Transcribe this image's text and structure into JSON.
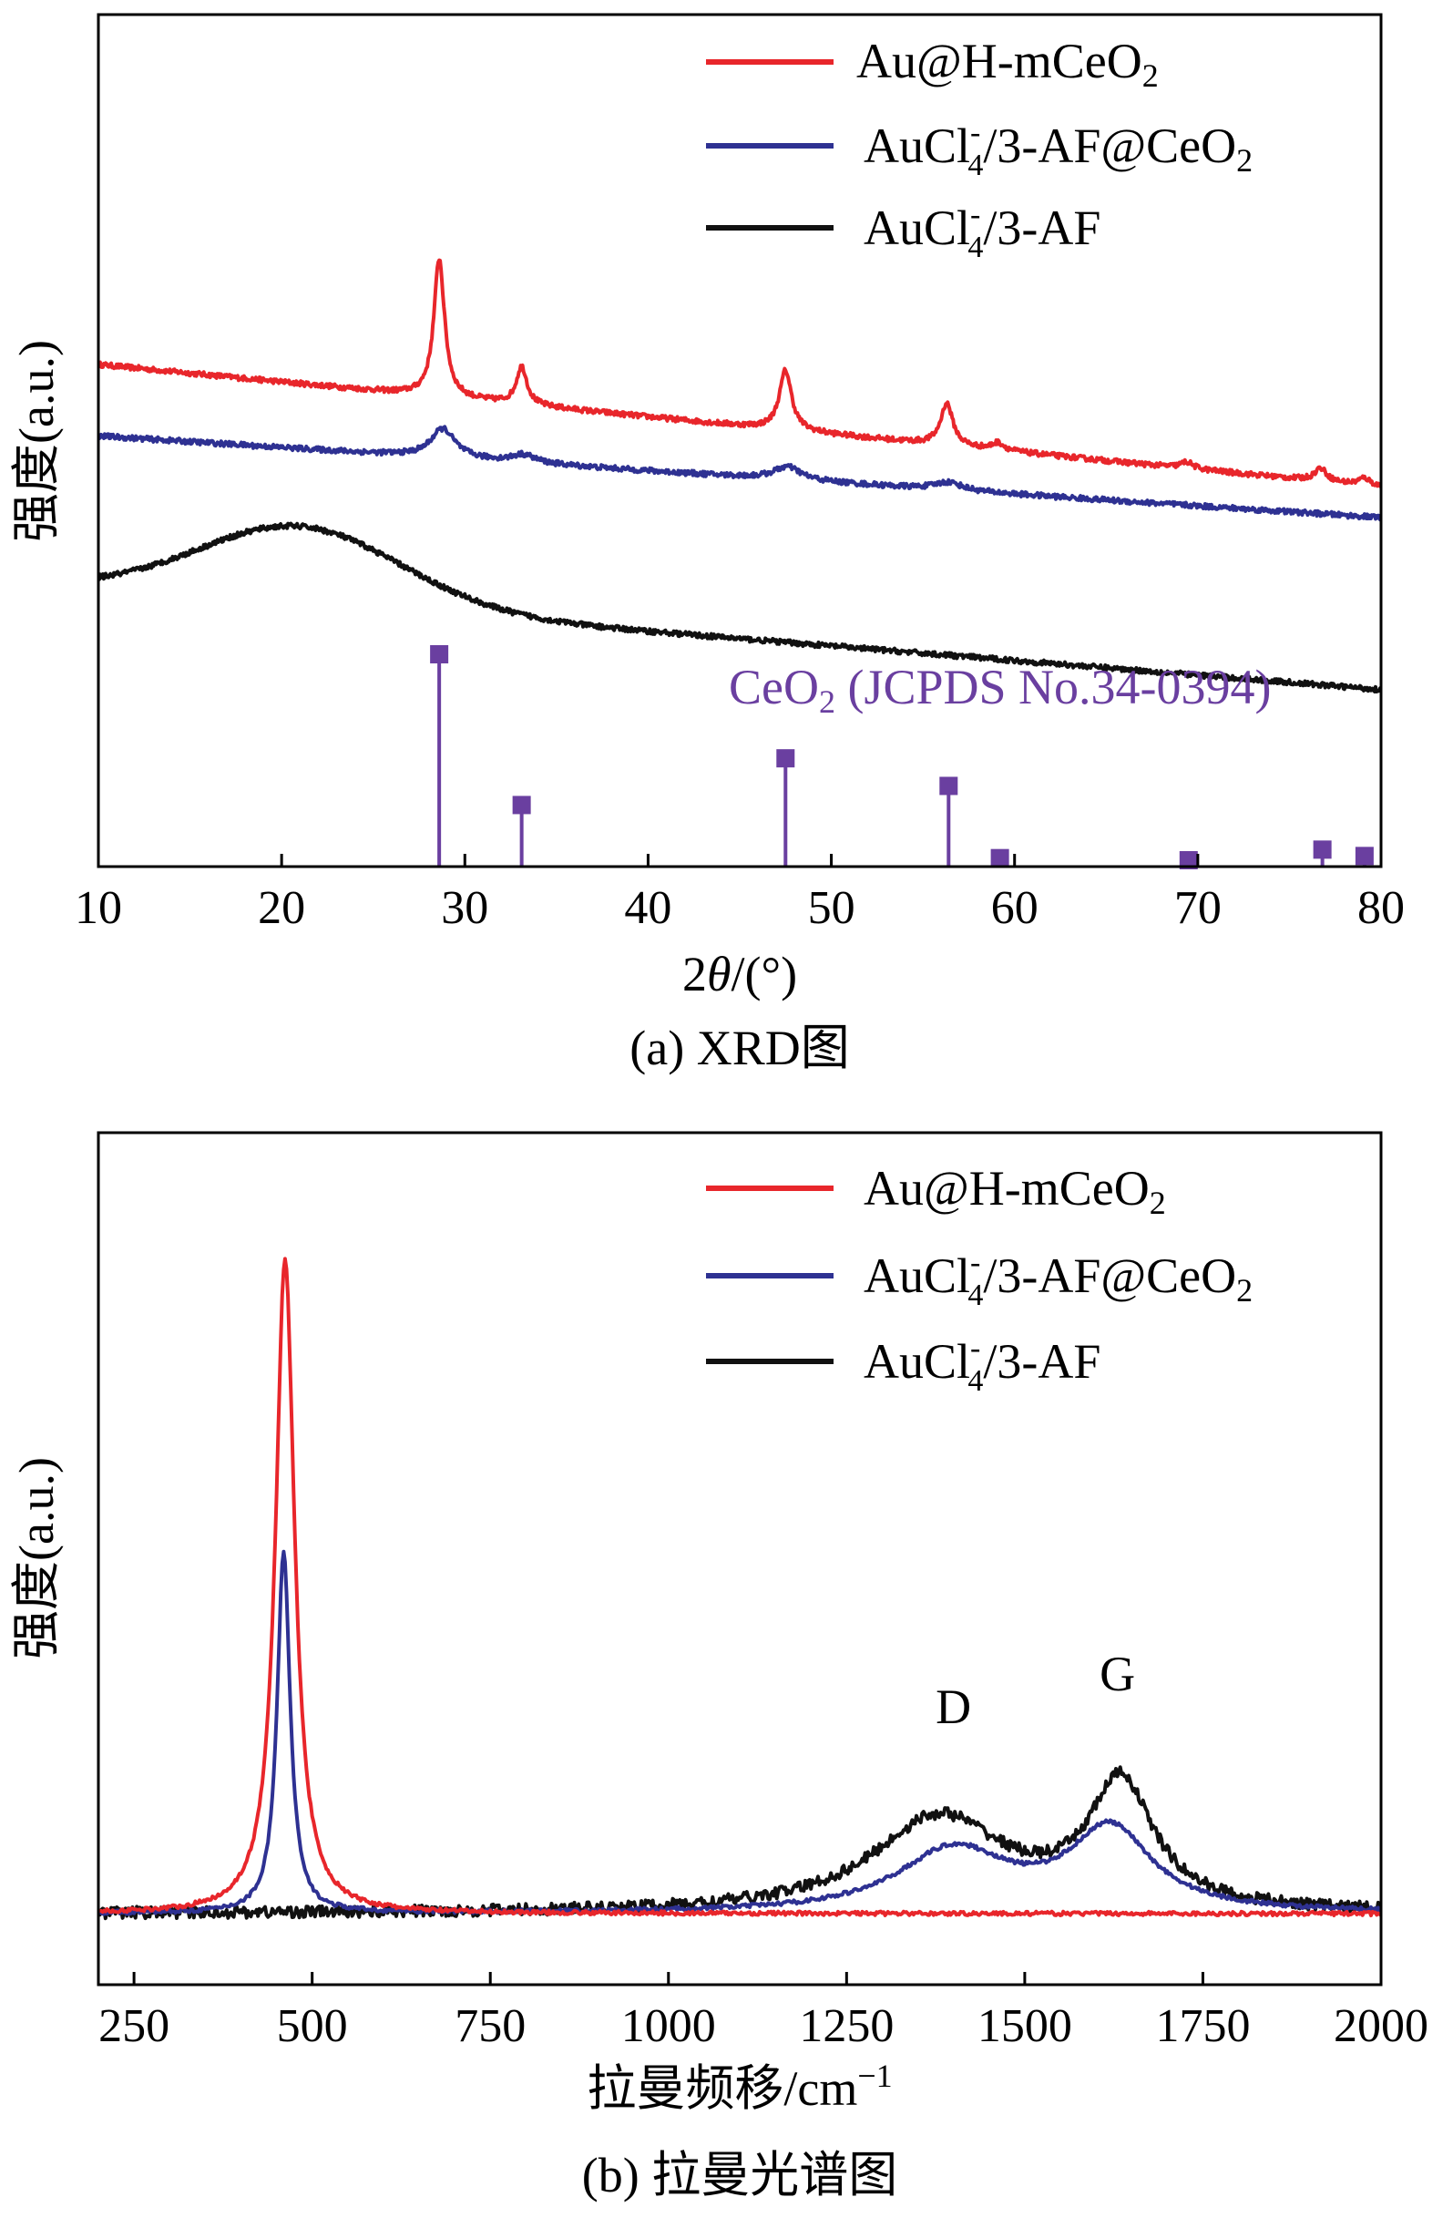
{
  "chart_data": [
    {
      "type": "line",
      "panel": "a",
      "caption": "(a) XRD图",
      "xlabel_prefix": "2",
      "xlabel_italic": "θ",
      "xlabel_suffix": "/(°)",
      "ylabel": "强度(a.u.)",
      "xlim": [
        10,
        80
      ],
      "xticks": [
        "10",
        "20",
        "30",
        "40",
        "50",
        "60",
        "70",
        "80"
      ],
      "series": [
        {
          "name": "Au@H-mCeO2",
          "legend_main": "Au@H-mCeO",
          "legend_sub": "2",
          "color": "#e8262b",
          "baseline": 7.5,
          "slope": -0.012,
          "peaks": [
            {
              "x": 28.6,
              "h": 9.5,
              "w": 0.35
            },
            {
              "x": 33.1,
              "h": 2.6,
              "w": 0.35
            },
            {
              "x": 47.5,
              "h": 4.1,
              "w": 0.4
            },
            {
              "x": 56.3,
              "h": 2.9,
              "w": 0.4
            },
            {
              "x": 59.1,
              "h": 0.5,
              "w": 0.4
            },
            {
              "x": 69.4,
              "h": 0.45,
              "w": 0.4
            },
            {
              "x": 76.7,
              "h": 0.9,
              "w": 0.4
            },
            {
              "x": 79.1,
              "h": 0.5,
              "w": 0.4
            }
          ]
        },
        {
          "name": "AuCl4-/3-AF@CeO2",
          "legend_parts": [
            "AuCl",
            "-",
            "4",
            "/3-AF@CeO",
            "2"
          ],
          "color": "#2e3192",
          "baseline": 2.6,
          "slope": -0.008,
          "peaks": [
            {
              "x": 28.8,
              "h": 2.0,
              "w": 0.8
            },
            {
              "x": 33.2,
              "h": 0.55,
              "w": 0.8
            },
            {
              "x": 47.6,
              "h": 0.9,
              "w": 0.9
            },
            {
              "x": 56.4,
              "h": 0.55,
              "w": 0.9
            }
          ]
        },
        {
          "name": "AuCl4-/3-AF",
          "legend_parts": [
            "AuCl",
            "-",
            "4",
            "/3-AF"
          ],
          "color": "#111111",
          "baseline": -7.8,
          "hump": {
            "x": 21.0,
            "h": 5.3,
            "w": 5.5
          },
          "slope": -0.01
        }
      ],
      "reference": {
        "label_main": "CeO",
        "label_sub": "2",
        "label_rest": " (JCPDS No.34-0394)",
        "color": "#6a3fa0",
        "positions": [
          28.6,
          33.1,
          47.5,
          56.4,
          59.2,
          69.5,
          76.8,
          79.1
        ],
        "intensities": [
          100,
          29,
          51,
          38,
          4,
          3,
          8,
          5
        ]
      }
    },
    {
      "type": "line",
      "panel": "b",
      "caption": "(b) 拉曼光谱图",
      "xlabel": "拉曼频移/cm",
      "xlabel_sup": "−1",
      "ylabel": "强度(a.u.)",
      "xlim": [
        200,
        2000
      ],
      "xticks": [
        "250",
        "500",
        "750",
        "1000",
        "1250",
        "1500",
        "1750",
        "2000"
      ],
      "peak_labels": [
        {
          "text": "D",
          "x": 1400,
          "y": 0.29
        },
        {
          "text": "G",
          "x": 1630,
          "y": 0.34
        }
      ],
      "series": [
        {
          "name": "Au@H-mCeO2",
          "legend_main": "Au@H-mCeO",
          "legend_sub": "2",
          "color": "#e8262b",
          "baseline": 0.0,
          "peaks": [
            {
              "x": 462,
              "h": 1.0,
              "w": 16
            }
          ]
        },
        {
          "name": "AuCl4-/3-AF@CeO2",
          "legend_parts": [
            "AuCl",
            "-",
            "4",
            "/3-AF@CeO",
            "2"
          ],
          "color": "#2e3192",
          "baseline": 0.0,
          "peaks": [
            {
              "x": 460,
              "h": 0.55,
              "w": 11
            },
            {
              "x": 1400,
              "h": 0.095,
              "w": 95
            },
            {
              "x": 1620,
              "h": 0.125,
              "w": 70
            }
          ]
        },
        {
          "name": "AuCl4-/3-AF",
          "legend_parts": [
            "AuCl",
            "-",
            "4",
            "/3-AF"
          ],
          "color": "#111111",
          "baseline": 0.0,
          "peaks": [
            {
              "x": 1380,
              "h": 0.145,
              "w": 115
            },
            {
              "x": 1635,
              "h": 0.19,
              "w": 55
            }
          ]
        }
      ]
    }
  ]
}
